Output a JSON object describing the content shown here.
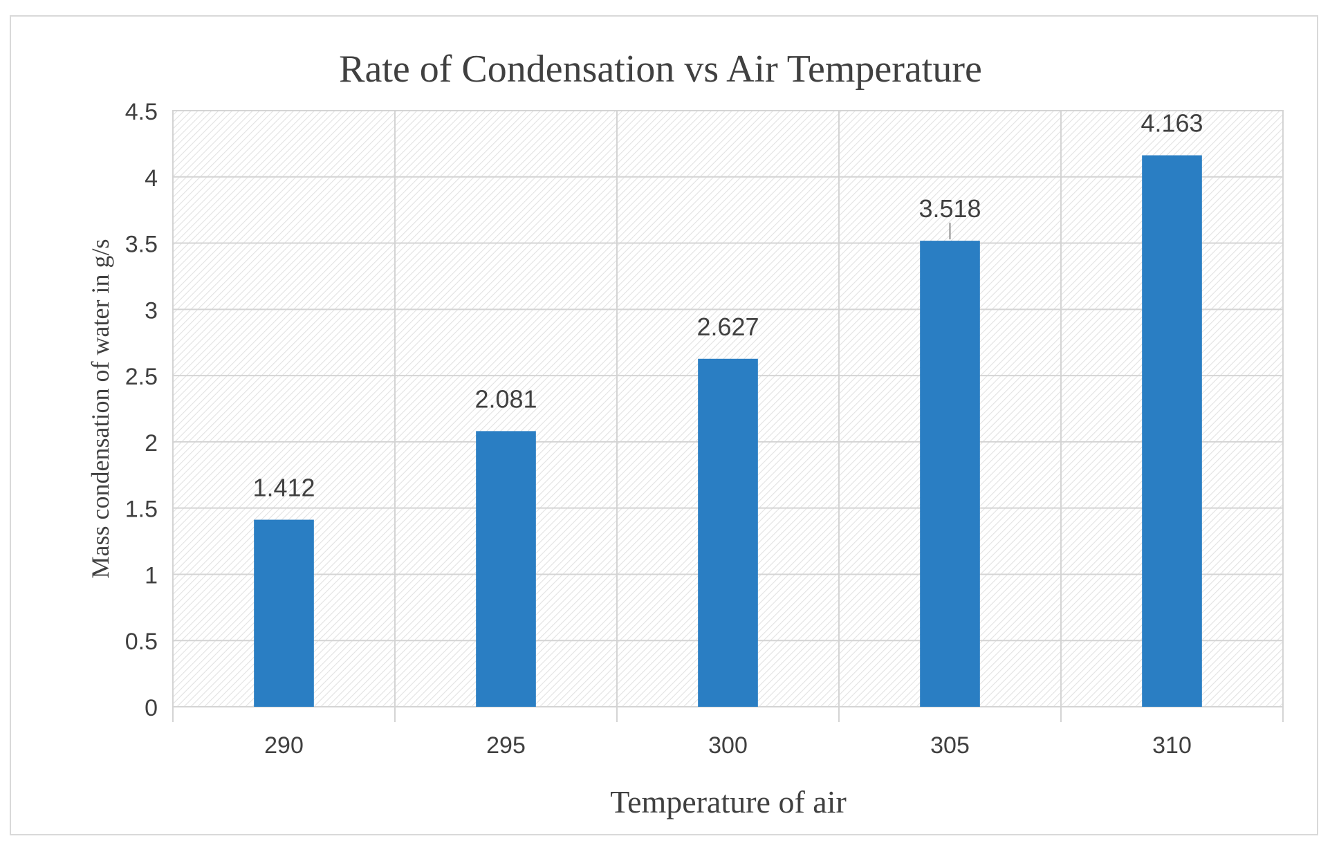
{
  "chart_data": {
    "type": "bar",
    "title": "Rate of Condensation vs Air Temperature",
    "xlabel": "Temperature of air",
    "ylabel": "Mass condensation of water in g/s",
    "categories": [
      "290",
      "295",
      "300",
      "305",
      "310"
    ],
    "values": [
      1.412,
      2.081,
      2.627,
      3.518,
      4.163
    ],
    "data_labels": [
      "1.412",
      "2.081",
      "2.627",
      "3.518",
      "4.163"
    ],
    "ylim": [
      0,
      4.5
    ],
    "yticks": [
      "0",
      "0.5",
      "1",
      "1.5",
      "2",
      "2.5",
      "3",
      "3.5",
      "4",
      "4.5"
    ],
    "grid": true,
    "legend": "none"
  },
  "colors": {
    "bar": "#2a7ec3",
    "grid": "#d4d4d4",
    "hatch": "#e4e4e4",
    "text": "#404040",
    "title": "#404040"
  }
}
